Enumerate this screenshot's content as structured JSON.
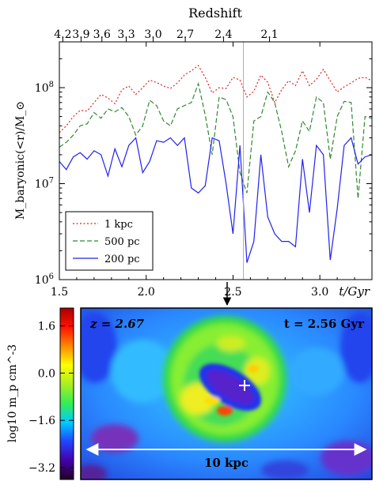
{
  "colors": {
    "kpc1": "#dd2222",
    "pc500": "#338833",
    "pc200": "#2222ee",
    "marker_line": "#aaaaaa",
    "colormap": [
      "#220022",
      "#4400aa",
      "#2244ff",
      "#00ccff",
      "#33ee55",
      "#aaee22",
      "#ffff00",
      "#ff8800",
      "#ff1100",
      "#aa0000"
    ]
  },
  "chart_data": [
    {
      "type": "line",
      "xlabel": "t/Gyr",
      "ylabel": "M_baryonic(<r)/M_⊙",
      "top_axis_label": "Redshift",
      "xlim": [
        1.5,
        3.3
      ],
      "ylim": [
        1000000,
        300000000
      ],
      "yscale": "log",
      "x_ticks": [
        "1.5",
        "2.0",
        "2.5",
        "3.0"
      ],
      "y_ticks": [
        {
          "value": 1000000,
          "base": "10",
          "exp": "6"
        },
        {
          "value": 10000000,
          "base": "10",
          "exp": "7"
        },
        {
          "value": 100000000,
          "base": "10",
          "exp": "8"
        }
      ],
      "top_ticks": [
        {
          "label": "4.2",
          "t": 1.52
        },
        {
          "label": "3.9",
          "t": 1.625
        },
        {
          "label": "3.6",
          "t": 1.745
        },
        {
          "label": "3.3",
          "t": 1.885
        },
        {
          "label": "3.0",
          "t": 2.04
        },
        {
          "label": "2.7",
          "t": 2.225
        },
        {
          "label": "2.4",
          "t": 2.445
        },
        {
          "label": "2.1",
          "t": 2.71
        }
      ],
      "marker_t": 2.56,
      "legend_position": "bottom-left",
      "x": [
        1.5,
        1.54,
        1.58,
        1.62,
        1.66,
        1.7,
        1.74,
        1.78,
        1.82,
        1.86,
        1.9,
        1.94,
        1.98,
        2.02,
        2.06,
        2.1,
        2.14,
        2.18,
        2.22,
        2.26,
        2.3,
        2.34,
        2.38,
        2.42,
        2.46,
        2.5,
        2.54,
        2.58,
        2.62,
        2.66,
        2.7,
        2.74,
        2.78,
        2.82,
        2.86,
        2.9,
        2.94,
        2.98,
        3.02,
        3.06,
        3.1,
        3.14,
        3.18,
        3.22,
        3.26,
        3.3
      ],
      "series": [
        {
          "name": "1 kpc",
          "color_key": "kpc1",
          "dash": "2,2.5",
          "values": [
            34000000,
            40000000,
            50000000,
            58000000,
            57000000,
            70000000,
            85000000,
            78000000,
            68000000,
            95000000,
            104000000,
            85000000,
            100000000,
            120000000,
            113000000,
            104000000,
            98000000,
            112000000,
            135000000,
            150000000,
            170000000,
            128000000,
            88000000,
            100000000,
            98000000,
            128000000,
            120000000,
            80000000,
            92000000,
            135000000,
            114000000,
            70000000,
            95000000,
            118000000,
            105000000,
            150000000,
            105000000,
            122000000,
            155000000,
            118000000,
            90000000,
            102000000,
            112000000,
            125000000,
            128000000,
            118000000
          ]
        },
        {
          "name": "500 pc",
          "color_key": "pc500",
          "dash": "6,3",
          "values": [
            24000000,
            27000000,
            32000000,
            40000000,
            42000000,
            55000000,
            48000000,
            60000000,
            56000000,
            62000000,
            50000000,
            32000000,
            40000000,
            74000000,
            65000000,
            45000000,
            40000000,
            60000000,
            65000000,
            70000000,
            110000000,
            52000000,
            20000000,
            80000000,
            75000000,
            50000000,
            13000000,
            8000000,
            45000000,
            50000000,
            90000000,
            70000000,
            35000000,
            15000000,
            22000000,
            45000000,
            35000000,
            80000000,
            70000000,
            18000000,
            50000000,
            72000000,
            70000000,
            7000000,
            50000000,
            48000000
          ]
        },
        {
          "name": "200 pc",
          "color_key": "pc200",
          "dash": "",
          "values": [
            17000000,
            14000000,
            19000000,
            21000000,
            18000000,
            22000000,
            20000000,
            12000000,
            23000000,
            15000000,
            25000000,
            30000000,
            13000000,
            17000000,
            28000000,
            27000000,
            30000000,
            25000000,
            30000000,
            9000000,
            8000000,
            9500000,
            30000000,
            28000000,
            10000000,
            3000000,
            25000000,
            1500000,
            2500000,
            20000000,
            4500000,
            3000000,
            2500000,
            2500000,
            2200000,
            18000000,
            5000000,
            25000000,
            20000000,
            1600000,
            5500000,
            25000000,
            30000000,
            16000000,
            19000000,
            20000000
          ]
        }
      ]
    },
    {
      "type": "heatmap",
      "colorbar_label": "log10 m_p cm^-3",
      "colorbar_ticks": [
        "1.6",
        "0.0",
        "−1.6",
        "−3.2"
      ],
      "z_label": "z = 2.67",
      "t_label": "t = 2.56 Gyr",
      "scale_label": "10 kpc"
    }
  ]
}
